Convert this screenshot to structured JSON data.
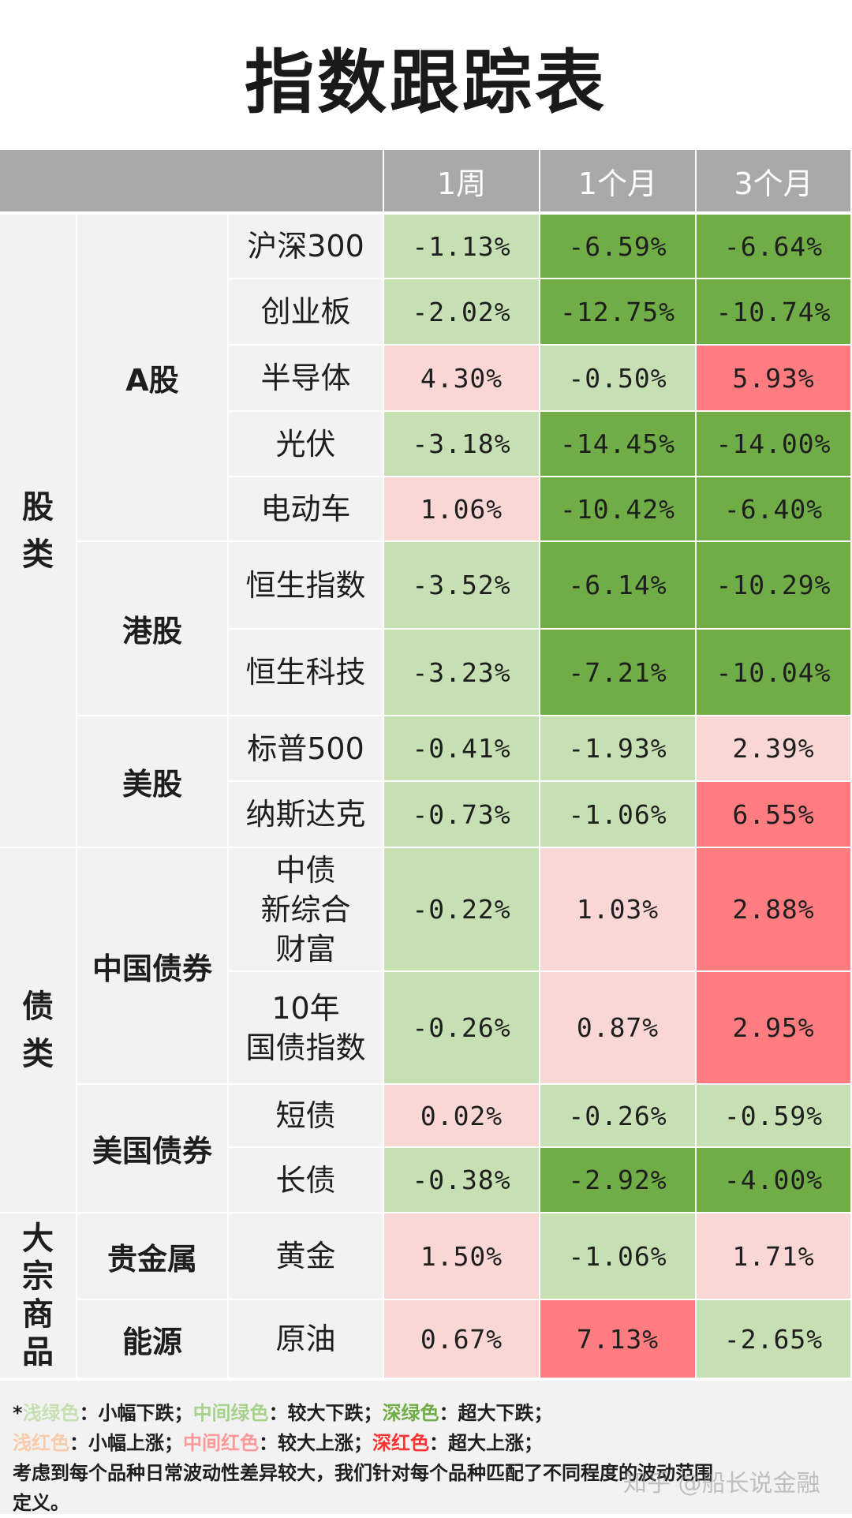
{
  "title": "指数跟踪表",
  "header": {
    "col1": "1周",
    "col2": "1个月",
    "col3": "3个月"
  },
  "categories": {
    "stocks": "股类",
    "bonds": "债类",
    "commodities": "大宗商品"
  },
  "subgroups": {
    "a_share": "A股",
    "hk": "港股",
    "us": "美股",
    "cn_bond": "中国债券",
    "us_bond": "美国债券",
    "metal": "贵金属",
    "energy": "能源"
  },
  "rows": [
    {
      "name": "沪深300",
      "w1": "-1.13%",
      "m1": "-6.59%",
      "m3": "-6.64%"
    },
    {
      "name": "创业板",
      "w1": "-2.02%",
      "m1": "-12.75%",
      "m3": "-10.74%"
    },
    {
      "name": "半导体",
      "w1": "4.30%",
      "m1": "-0.50%",
      "m3": "5.93%"
    },
    {
      "name": "光伏",
      "w1": "-3.18%",
      "m1": "-14.45%",
      "m3": "-14.00%"
    },
    {
      "name": "电动车",
      "w1": "1.06%",
      "m1": "-10.42%",
      "m3": "-6.40%"
    },
    {
      "name": "恒生指数",
      "w1": "-3.52%",
      "m1": "-6.14%",
      "m3": "-10.29%"
    },
    {
      "name": "恒生科技",
      "w1": "-3.23%",
      "m1": "-7.21%",
      "m3": "-10.04%"
    },
    {
      "name": "标普500",
      "w1": "-0.41%",
      "m1": "-1.93%",
      "m3": "2.39%"
    },
    {
      "name": "纳斯达克",
      "w1": "-0.73%",
      "m1": "-1.06%",
      "m3": "6.55%"
    },
    {
      "name": "中债\n新综合\n财富",
      "w1": "-0.22%",
      "m1": "1.03%",
      "m3": "2.88%"
    },
    {
      "name": "10年\n国债指数",
      "w1": "-0.26%",
      "m1": "0.87%",
      "m3": "2.95%"
    },
    {
      "name": "短债",
      "w1": "0.02%",
      "m1": "-0.26%",
      "m3": "-0.59%"
    },
    {
      "name": "长债",
      "w1": "-0.38%",
      "m1": "-2.92%",
      "m3": "-4.00%"
    },
    {
      "name": "黄金",
      "w1": "1.50%",
      "m1": "-1.06%",
      "m3": "1.71%"
    },
    {
      "name": "原油",
      "w1": "0.67%",
      "m1": "7.13%",
      "m3": "-2.65%"
    }
  ],
  "colors": {
    "light_green": "#c6e0b4",
    "medium_green": "#a9d18e",
    "dark_green": "#70ad47",
    "light_red": "#f8d7d4",
    "medium_red": "#ff9999",
    "dark_red": "#ff7c80",
    "header_gray": "#a9a9a9",
    "label_bg": "#f2f2f2"
  },
  "legend": {
    "star": "*",
    "lg": "浅绿色",
    "lg_desc": "：小幅下跌；",
    "mg": "中间绿色",
    "mg_desc": "：较大下跌；",
    "dg": "深绿色",
    "dg_desc": "：超大下跌；",
    "lr": "浅红色",
    "lr_desc": "：小幅上涨；",
    "mr": "中间红色",
    "mr_desc": "：较大上涨；",
    "dr": "深红色",
    "dr_desc": "：超大上涨；",
    "note1": "考虑到每个品种日常波动性差异较大，我们针对每个品种匹配了不同程度的波动范围",
    "note2": "定义。"
  },
  "watermark": "知乎 @船长说金融"
}
